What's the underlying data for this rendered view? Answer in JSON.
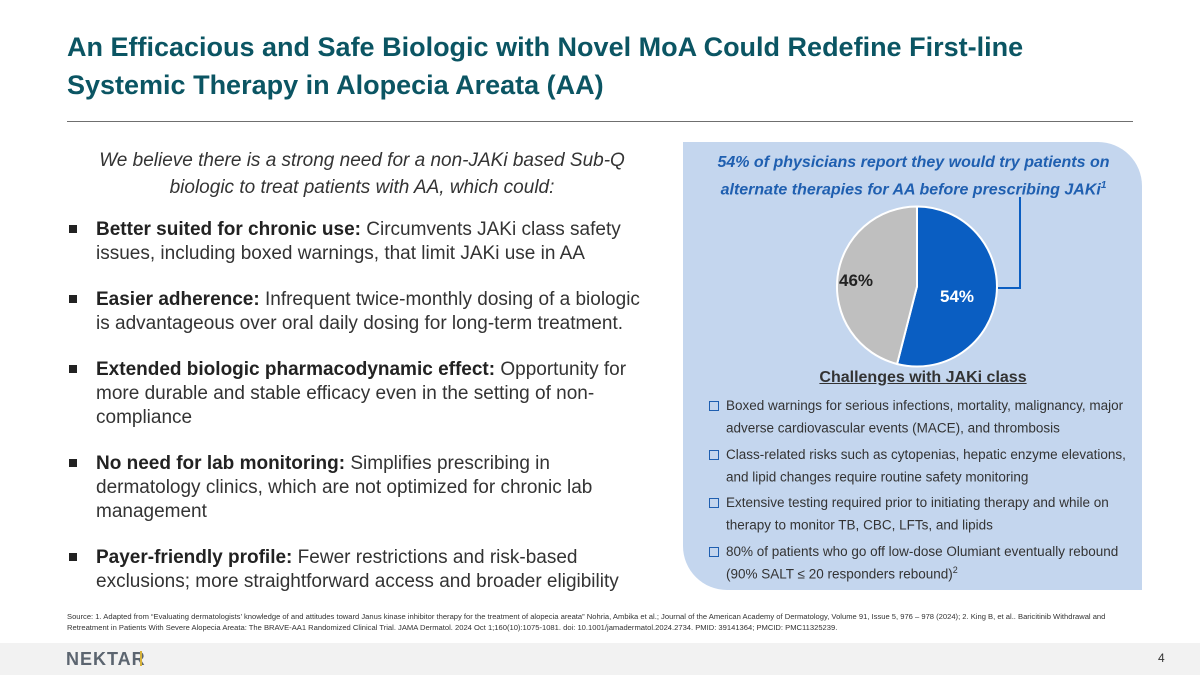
{
  "title": "An Efficacious and Safe Biologic with Novel MoA Could Redefine First-line Systemic Therapy in Alopecia Areata (AA)",
  "intro": "We believe there is a strong need for a non-JAKi based Sub-Q biologic to treat patients with AA, which could:",
  "bullets": [
    {
      "head": "Better suited for chronic use:",
      "text": " Circumvents JAKi class safety issues, including boxed warnings, that limit JAKi use in AA"
    },
    {
      "head": "Easier adherence:",
      "text": " Infrequent twice-monthly dosing of a biologic is advantageous over oral daily dosing for long-term treatment."
    },
    {
      "head": "Extended biologic pharmacodynamic effect:",
      "text": " Opportunity for more durable and stable efficacy even in the setting of non-compliance"
    },
    {
      "head": "No need for lab monitoring:",
      "text": " Simplifies prescribing in dermatology clinics, which are not optimized for chronic lab management"
    },
    {
      "head": "Payer-friendly profile:",
      "text": " Fewer restrictions and risk-based exclusions; more straightforward access and broader eligibility"
    }
  ],
  "panel": {
    "heading": "54% of physicians report they would try patients on alternate therapies for AA before prescribing JAKi",
    "heading_sup": "1"
  },
  "chart_data": {
    "type": "pie",
    "slices": [
      {
        "label": "54%",
        "value": 54,
        "color": "#0a5ec2"
      },
      {
        "label": "46%",
        "value": 46,
        "color": "#bfbfbf"
      }
    ]
  },
  "challenges": {
    "title": "Challenges with JAKi class",
    "items": [
      {
        "text": "Boxed warnings for serious infections, mortality, malignancy, major adverse cardiovascular events (MACE), and thrombosis",
        "sup": ""
      },
      {
        "text": "Class-related risks such as cytopenias, hepatic enzyme elevations, and lipid changes require routine safety monitoring",
        "sup": ""
      },
      {
        "text": "Extensive testing required prior to initiating therapy and while on therapy to monitor TB, CBC, LFTs, and lipids",
        "sup": ""
      },
      {
        "text": "80% of patients who go off low-dose Olumiant eventually rebound (90% SALT ≤ 20 responders rebound)",
        "sup": "2"
      }
    ]
  },
  "source": "Source: 1. Adapted from “Evaluating dermatologists’ knowledge of and attitudes toward Janus kinase inhibitor therapy for the treatment of alopecia areata” Nohria, Ambika et al.; Journal of the American Academy of Dermatology, Volume 91, Issue 5, 976 – 978 (2024); 2. King B, et al.. Baricitinib Withdrawal and Retreatment in Patients With Severe Alopecia Areata: The BRAVE-AA1 Randomized Clinical Trial. JAMA Dermatol. 2024 Oct 1;160(10):1075-1081. doi: 10.1001/jamadermatol.2024.2734. PMID: 39141364; PMCID: PMC11325239.",
  "footer": {
    "logo": "NEKTAR",
    "page": "4"
  }
}
